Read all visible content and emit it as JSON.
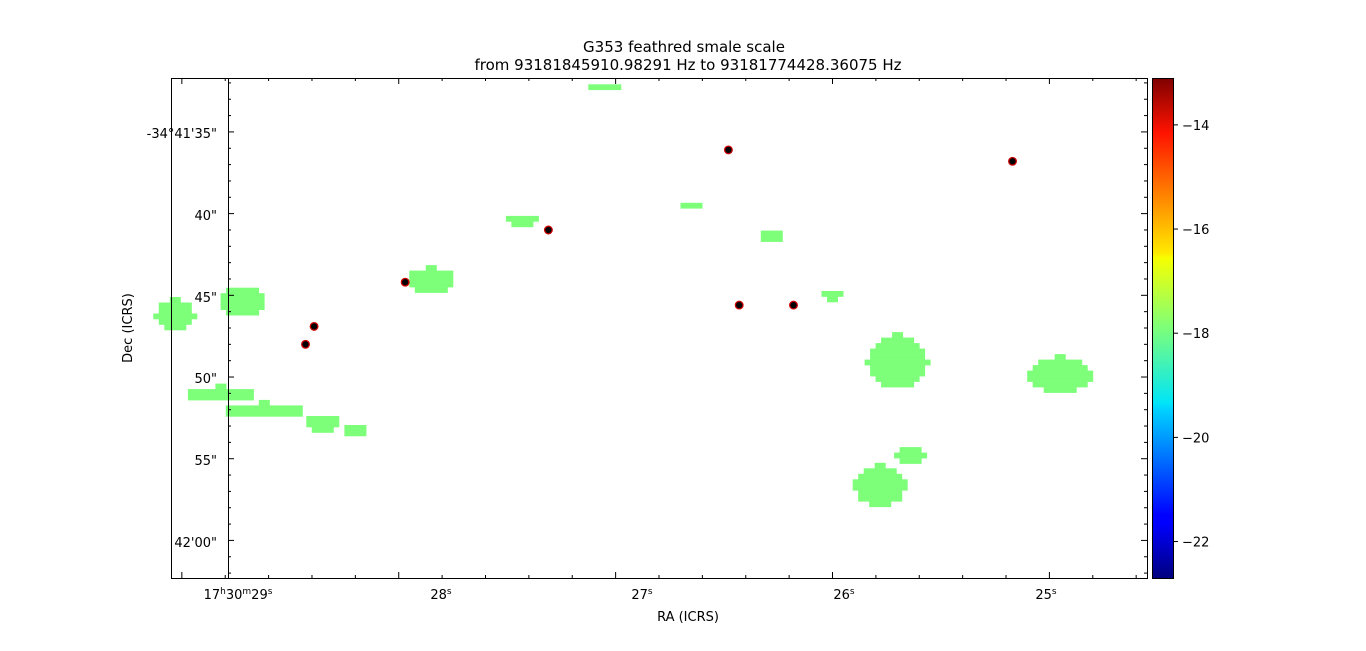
{
  "chart_data": {
    "type": "heatmap",
    "title_line1": "G353 feathred smale scale",
    "title_line2": "from 93181845910.98291 Hz to 93181774428.36075 Hz",
    "xlabel": "RA (ICRS)",
    "ylabel": "Dec (ICRS)",
    "x_ticks": [
      {
        "h": "17",
        "m": "30",
        "s": "29",
        "label_parts": [
          "17",
          "h",
          "30",
          "m",
          "29",
          "s"
        ]
      },
      {
        "s": "28",
        "label_parts": [
          "28",
          "s"
        ]
      },
      {
        "s": "27",
        "label_parts": [
          "27",
          "s"
        ]
      },
      {
        "s": "26",
        "label_parts": [
          "26",
          "s"
        ]
      },
      {
        "s": "25",
        "label_parts": [
          "25",
          "s"
        ]
      }
    ],
    "y_ticks": [
      "-34°41'35\"",
      "40\"",
      "45\"",
      "50\"",
      "55\"",
      "42'00\""
    ],
    "ra_range_s": [
      29.05,
      24.55
    ],
    "dec_range_arcsec": [
      31.7,
      62.3
    ],
    "colorbar": {
      "colormap": "jet",
      "range": [
        -22.7,
        -13.1
      ],
      "ticks": [
        "−14",
        "−16",
        "−18",
        "−20",
        "−22"
      ],
      "tick_values": [
        -14,
        -16,
        -18,
        -20,
        -22
      ]
    },
    "emission_value": -17.5,
    "emission_color": "#7dff7a",
    "marker_color": "#000000",
    "marker_edge": "#cc0000",
    "regions": [
      {
        "ra": 29.03,
        "dec": 46.0,
        "w": 0.18,
        "h": 1.8
      },
      {
        "ra": 28.72,
        "dec": 45.2,
        "w": 0.2,
        "h": 2.0
      },
      {
        "ra": 28.82,
        "dec": 50.9,
        "w": 0.3,
        "h": 1.0
      },
      {
        "ra": 28.62,
        "dec": 51.9,
        "w": 0.4,
        "h": 1.0
      },
      {
        "ra": 28.35,
        "dec": 52.7,
        "w": 0.15,
        "h": 1.3
      },
      {
        "ra": 28.2,
        "dec": 53.0,
        "w": 0.12,
        "h": 0.8
      },
      {
        "ra": 27.85,
        "dec": 43.9,
        "w": 0.22,
        "h": 1.5
      },
      {
        "ra": 27.43,
        "dec": 40.2,
        "w": 0.15,
        "h": 0.8
      },
      {
        "ra": 27.05,
        "dec": 32.0,
        "w": 0.18,
        "h": 0.5
      },
      {
        "ra": 26.65,
        "dec": 39.3,
        "w": 0.08,
        "h": 0.6
      },
      {
        "ra": 26.28,
        "dec": 41.1,
        "w": 0.12,
        "h": 0.8
      },
      {
        "ra": 26.0,
        "dec": 44.8,
        "w": 0.08,
        "h": 0.8
      },
      {
        "ra": 25.7,
        "dec": 48.9,
        "w": 0.28,
        "h": 3.3
      },
      {
        "ra": 24.95,
        "dec": 49.7,
        "w": 0.3,
        "h": 2.2
      },
      {
        "ra": 25.78,
        "dec": 56.5,
        "w": 0.24,
        "h": 2.5
      },
      {
        "ra": 25.64,
        "dec": 54.6,
        "w": 0.14,
        "h": 1.3
      }
    ],
    "markers": [
      {
        "ra": 28.43,
        "dec": 48.0
      },
      {
        "ra": 28.39,
        "dec": 46.9
      },
      {
        "ra": 27.97,
        "dec": 44.2
      },
      {
        "ra": 27.31,
        "dec": 41.0
      },
      {
        "ra": 26.48,
        "dec": 36.1
      },
      {
        "ra": 26.43,
        "dec": 45.6
      },
      {
        "ra": 26.18,
        "dec": 45.6
      },
      {
        "ra": 25.17,
        "dec": 36.8
      }
    ]
  }
}
